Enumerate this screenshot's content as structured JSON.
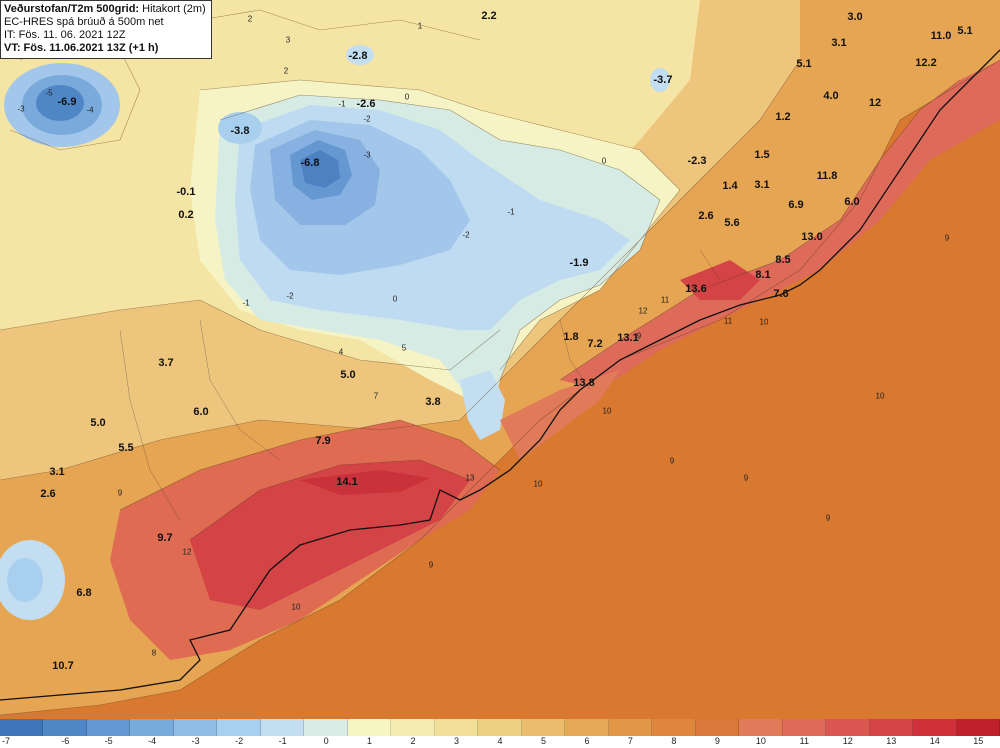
{
  "header": {
    "title_bold": "Veðurstofan/T2m 500grid:",
    "title_rest": " Hitakort (2m)",
    "model": "EC-HRES spá brúuð á 500m net",
    "issue_time": "IT: Fös. 11. 06. 2021 12Z",
    "valid_time": "VT: Fös. 11.06.2021 13Z (+1 h)"
  },
  "temperature_labels": [
    {
      "id": "t1",
      "value": "-6.9"
    },
    {
      "id": "t2",
      "value": "-2.8"
    },
    {
      "id": "t3",
      "value": "-2.6"
    },
    {
      "id": "t4",
      "value": "-3.8"
    },
    {
      "id": "t5",
      "value": "-6.8"
    },
    {
      "id": "t6",
      "value": "-0.1"
    },
    {
      "id": "t7",
      "value": "0.2"
    },
    {
      "id": "t8",
      "value": "2.2"
    },
    {
      "id": "t9",
      "value": "3.0"
    },
    {
      "id": "t10",
      "value": "3.1"
    },
    {
      "id": "t11",
      "value": "11.0"
    },
    {
      "id": "t12",
      "value": "5.1"
    },
    {
      "id": "t13",
      "value": "12.2"
    },
    {
      "id": "t14",
      "value": "5.1"
    },
    {
      "id": "t15",
      "value": "-3.7"
    },
    {
      "id": "t16",
      "value": "4.0"
    },
    {
      "id": "t17",
      "value": "12"
    },
    {
      "id": "t18",
      "value": "1.2"
    },
    {
      "id": "t19",
      "value": "1.5"
    },
    {
      "id": "t20",
      "value": "-2.3"
    },
    {
      "id": "t21",
      "value": "1.4"
    },
    {
      "id": "t22",
      "value": "3.1"
    },
    {
      "id": "t23",
      "value": "11.8"
    },
    {
      "id": "t24",
      "value": "6.9"
    },
    {
      "id": "t25",
      "value": "6.0"
    },
    {
      "id": "t26",
      "value": "2.6"
    },
    {
      "id": "t27",
      "value": "5.6"
    },
    {
      "id": "t28",
      "value": "13.0"
    },
    {
      "id": "t29",
      "value": "-1.9"
    },
    {
      "id": "t30",
      "value": "8.5"
    },
    {
      "id": "t31",
      "value": "8.1"
    },
    {
      "id": "t32",
      "value": "13.6"
    },
    {
      "id": "t33",
      "value": "7.6"
    },
    {
      "id": "t34",
      "value": "1.8"
    },
    {
      "id": "t35",
      "value": "7.2"
    },
    {
      "id": "t36",
      "value": "13.1"
    },
    {
      "id": "t37",
      "value": "13.8"
    },
    {
      "id": "t38",
      "value": "3.7"
    },
    {
      "id": "t39",
      "value": "5.0"
    },
    {
      "id": "t40",
      "value": "6.0"
    },
    {
      "id": "t41",
      "value": "3.8"
    },
    {
      "id": "t42",
      "value": "5.0"
    },
    {
      "id": "t43",
      "value": "5.5"
    },
    {
      "id": "t44",
      "value": "7.9"
    },
    {
      "id": "t45",
      "value": "3.1"
    },
    {
      "id": "t46",
      "value": "2.6"
    },
    {
      "id": "t47",
      "value": "14.1"
    },
    {
      "id": "t48",
      "value": "9.7"
    },
    {
      "id": "t49",
      "value": "6.8"
    },
    {
      "id": "t50",
      "value": "10.7"
    }
  ],
  "contour_labels": [
    {
      "id": "c1",
      "value": "1"
    },
    {
      "id": "c2",
      "value": "0"
    },
    {
      "id": "c3",
      "value": "-3"
    },
    {
      "id": "c4",
      "value": "-4"
    },
    {
      "id": "c5",
      "value": "-5"
    },
    {
      "id": "c6",
      "value": "2"
    },
    {
      "id": "c7",
      "value": "-1"
    },
    {
      "id": "c8",
      "value": "-2"
    },
    {
      "id": "c9",
      "value": "0"
    },
    {
      "id": "c10",
      "value": "-2"
    },
    {
      "id": "c11",
      "value": "-3"
    },
    {
      "id": "c12",
      "value": "-1"
    },
    {
      "id": "c13",
      "value": "-2"
    },
    {
      "id": "c14",
      "value": "0"
    },
    {
      "id": "c15",
      "value": "-1"
    },
    {
      "id": "c16",
      "value": "4"
    },
    {
      "id": "c17",
      "value": "7"
    },
    {
      "id": "c18",
      "value": "9"
    },
    {
      "id": "c19",
      "value": "10"
    },
    {
      "id": "c20",
      "value": "9"
    },
    {
      "id": "c21",
      "value": "10"
    },
    {
      "id": "c22",
      "value": "9"
    },
    {
      "id": "c23",
      "value": "10"
    },
    {
      "id": "c24",
      "value": "11"
    },
    {
      "id": "c25",
      "value": "12"
    },
    {
      "id": "c26",
      "value": "13"
    },
    {
      "id": "c27",
      "value": "8"
    },
    {
      "id": "c28",
      "value": "9"
    },
    {
      "id": "c29",
      "value": "3"
    },
    {
      "id": "c30",
      "value": "2"
    },
    {
      "id": "c31",
      "value": "5"
    },
    {
      "id": "c32",
      "value": "9"
    },
    {
      "id": "c33",
      "value": "10"
    },
    {
      "id": "c34",
      "value": "9"
    },
    {
      "id": "c35",
      "value": "11"
    },
    {
      "id": "c36",
      "value": "9"
    },
    {
      "id": "c37",
      "value": "12"
    },
    {
      "id": "c38",
      "value": "10"
    }
  ],
  "colorbar": {
    "ticks": [
      "-7",
      "-6",
      "-5",
      "-4",
      "-3",
      "-2",
      "-1",
      "0",
      "1",
      "2",
      "3",
      "4",
      "5",
      "6",
      "7",
      "8",
      "9",
      "10",
      "11",
      "12",
      "13",
      "14",
      "15"
    ],
    "colors": [
      "#3e74b8",
      "#4f86c6",
      "#6398d2",
      "#79aadc",
      "#90bde6",
      "#a9cfee",
      "#c2def0",
      "#d9ece6",
      "#f6f6c2",
      "#f5ecb0",
      "#f1df98",
      "#edcf82",
      "#e9bd6c",
      "#e5aa58",
      "#e29748",
      "#de853e",
      "#d97839",
      "#e07a58",
      "#de6a5a",
      "#da5651",
      "#d44346",
      "#cf3039",
      "#c0202b"
    ]
  }
}
